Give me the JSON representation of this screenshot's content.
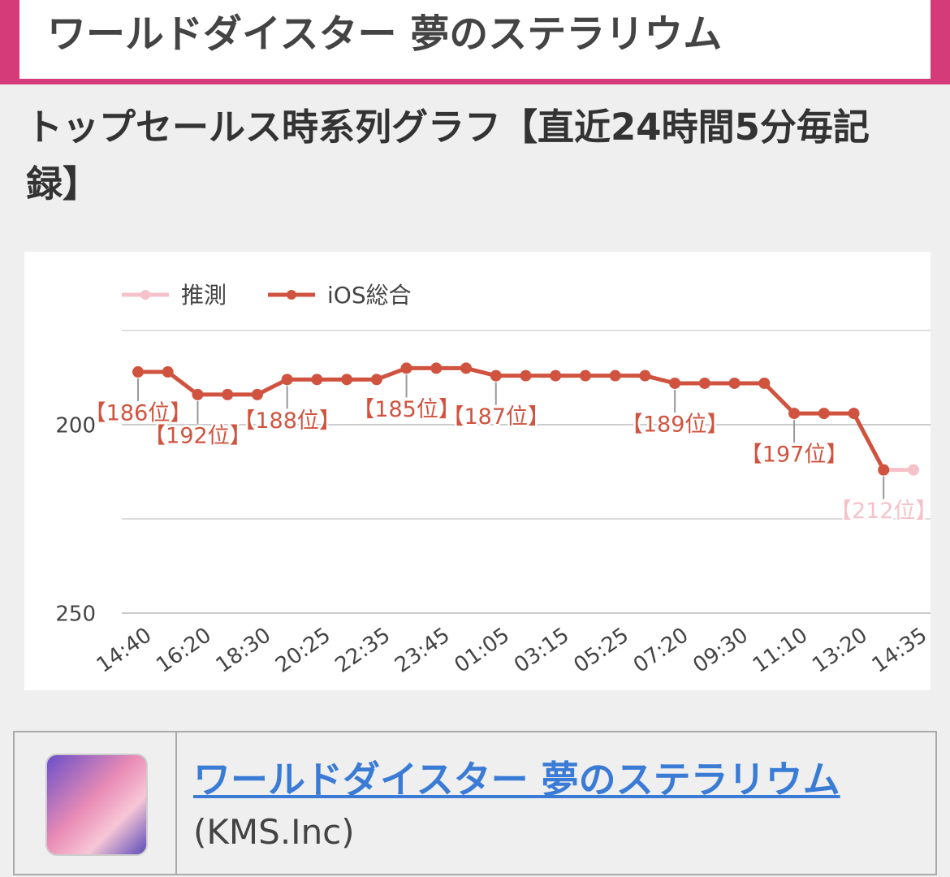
{
  "header": {
    "title": "ワールドダイスター 夢のステラリウム"
  },
  "section_title": "トップセールス時系列グラフ【直近24時間5分毎記録】",
  "chart_data": {
    "type": "line",
    "categories": [
      "14:40",
      null,
      "16:20",
      null,
      "18:30",
      null,
      "20:25",
      null,
      "22:35",
      null,
      "23:45",
      null,
      "01:05",
      null,
      "03:15",
      null,
      "05:25",
      null,
      "07:20",
      null,
      "09:30",
      null,
      "11:10",
      null,
      "13:20",
      null,
      "14:35"
    ],
    "series": [
      {
        "name": "推測",
        "color": "#f4c2c8",
        "values": [
          null,
          null,
          null,
          null,
          null,
          null,
          null,
          null,
          null,
          null,
          null,
          null,
          null,
          null,
          null,
          null,
          null,
          null,
          null,
          null,
          null,
          null,
          null,
          null,
          null,
          212,
          212
        ],
        "value_labels": [
          null,
          null,
          null,
          null,
          null,
          null,
          null,
          null,
          null,
          null,
          null,
          null,
          null,
          null,
          null,
          null,
          null,
          null,
          null,
          null,
          null,
          null,
          null,
          null,
          null,
          "【212位】",
          null
        ]
      },
      {
        "name": "iOS総合",
        "color": "#d0533f",
        "values": [
          186,
          186,
          192,
          192,
          192,
          188,
          188,
          188,
          188,
          185,
          185,
          185,
          187,
          187,
          187,
          187,
          187,
          187,
          189,
          189,
          189,
          189,
          197,
          197,
          197,
          212,
          null
        ],
        "value_labels": [
          "【186位】",
          null,
          "【192位】",
          null,
          null,
          "【188位】",
          null,
          null,
          null,
          "【185位】",
          null,
          null,
          "【187位】",
          null,
          null,
          null,
          null,
          null,
          "【189位】",
          null,
          null,
          null,
          "【197位】",
          null,
          null,
          null,
          null
        ]
      }
    ],
    "ylim": [
      175,
      250
    ],
    "y_reversed": true,
    "yticks": [
      200,
      250
    ],
    "minor_grid": [
      175,
      225
    ],
    "grid": true,
    "legend": "top-left"
  },
  "app_card": {
    "name": "ワールドダイスター 夢のステラリウム",
    "developer": "(KMS.Inc)"
  }
}
